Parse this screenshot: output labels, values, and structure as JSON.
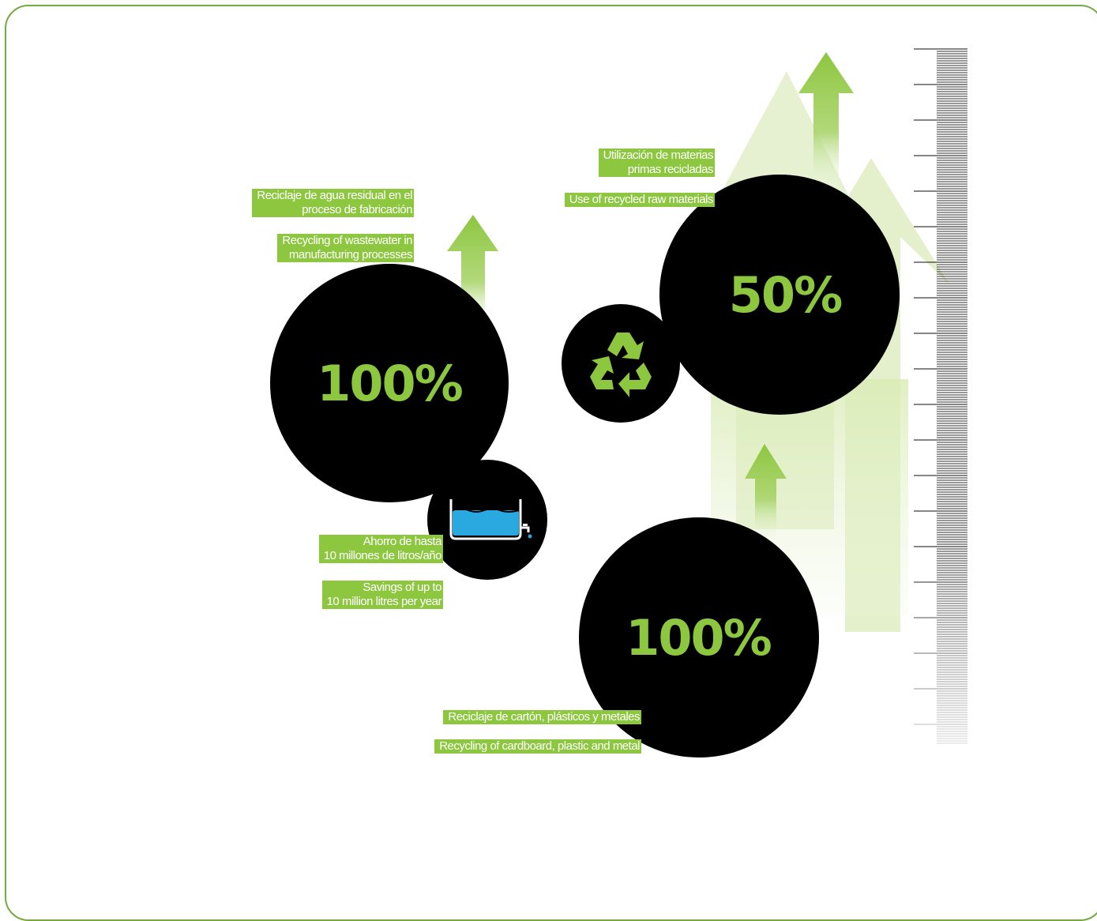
{
  "stats": {
    "water": {
      "value": "100%",
      "label_es": [
        "Reciclaje de agua residual en  el",
        "proceso de fabricación"
      ],
      "label_en": [
        "Recycling of wastewater in",
        "manufacturing processes"
      ]
    },
    "savings": {
      "label_es": [
        "Ahorro de hasta",
        "10 millones de litros/año"
      ],
      "label_en": [
        "Savings of up to",
        "10 million litres per year"
      ]
    },
    "raw_materials": {
      "value": "50%",
      "label_es": [
        "Utilización de materias",
        "primas recicladas"
      ],
      "label_en": [
        "Use of recycled raw materials"
      ]
    },
    "cardboard": {
      "value": "100%",
      "label_es": [
        "Reciclaje de cartón, plásticos y metales"
      ],
      "label_en": [
        "Recycling of cardboard, plastic and metal"
      ]
    }
  },
  "icons": {
    "water_tank": "water-tank-icon",
    "recycle": "recycle-icon"
  },
  "colors": {
    "accent_green": "#8dc63f",
    "circle": "#000000",
    "frame": "#76a843",
    "water_blue": "#29a9e0"
  }
}
